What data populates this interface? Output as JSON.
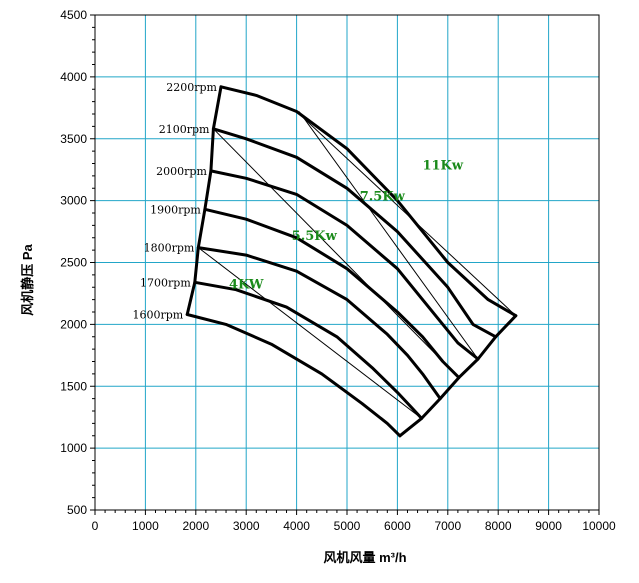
{
  "chart_data": {
    "type": "line",
    "title": "",
    "xlabel": "风机风量   m³/h",
    "ylabel": "风机静压   Pa",
    "xlim": [
      0,
      10000
    ],
    "ylim": [
      500,
      4500
    ],
    "x_ticks": [
      0,
      1000,
      2000,
      3000,
      4000,
      5000,
      6000,
      7000,
      8000,
      9000,
      10000
    ],
    "y_ticks": [
      500,
      1000,
      1500,
      2000,
      2500,
      3000,
      3500,
      4000,
      4500
    ],
    "grid": true,
    "colors": {
      "grid": "#22a6c8",
      "curve": "#000000",
      "kw_label": "#1a8a1a"
    },
    "speed_curves": [
      {
        "label": "2200rpm",
        "x": [
          2500,
          3200,
          4000,
          5000,
          6000,
          7000,
          7800,
          8350
        ],
        "y": [
          3920,
          3850,
          3720,
          3420,
          3000,
          2500,
          2200,
          2070
        ]
      },
      {
        "label": "2100rpm",
        "x": [
          2350,
          3000,
          4000,
          5000,
          6000,
          7000,
          7500,
          7950
        ],
        "y": [
          3580,
          3500,
          3350,
          3100,
          2750,
          2300,
          2000,
          1900
        ]
      },
      {
        "label": "2000rpm",
        "x": [
          2300,
          3000,
          4000,
          5000,
          6000,
          6800,
          7200,
          7600
        ],
        "y": [
          3240,
          3180,
          3050,
          2800,
          2450,
          2050,
          1850,
          1720
        ]
      },
      {
        "label": "1900rpm",
        "x": [
          2180,
          3000,
          4000,
          5000,
          6000,
          6500,
          6900,
          7220
        ],
        "y": [
          2930,
          2850,
          2700,
          2450,
          2100,
          1900,
          1700,
          1570
        ]
      },
      {
        "label": "1800rpm",
        "x": [
          2050,
          3000,
          4000,
          5000,
          5800,
          6200,
          6500,
          6850
        ],
        "y": [
          2620,
          2560,
          2430,
          2200,
          1920,
          1750,
          1600,
          1400
        ]
      },
      {
        "label": "1700rpm",
        "x": [
          1980,
          2800,
          3800,
          4800,
          5500,
          6000,
          6300,
          6480
        ],
        "y": [
          2340,
          2280,
          2140,
          1900,
          1650,
          1450,
          1320,
          1240
        ]
      },
      {
        "label": "1600rpm",
        "x": [
          1830,
          2600,
          3500,
          4500,
          5300,
          5800,
          6050
        ],
        "y": [
          2080,
          2000,
          1840,
          1600,
          1360,
          1200,
          1100
        ]
      }
    ],
    "min_flow_boundary": {
      "x": [
        1830,
        1980,
        2050,
        2180,
        2300,
        2350,
        2500
      ],
      "y": [
        2080,
        2340,
        2620,
        2930,
        3240,
        3580,
        3920
      ]
    },
    "max_flow_boundary": {
      "x": [
        6050,
        6480,
        6850,
        7220,
        7600,
        7950,
        8350
      ],
      "y": [
        1100,
        1240,
        1400,
        1570,
        1720,
        1900,
        2070
      ]
    },
    "power_lines": [
      {
        "label": "4KW",
        "label_at": [
          3000,
          2290
        ],
        "x": [
          2050,
          6480
        ],
        "y": [
          2620,
          1240
        ]
      },
      {
        "label": "5.5Kw",
        "label_at": [
          4350,
          2680
        ],
        "x": [
          2350,
          7220
        ],
        "y": [
          3580,
          1570
        ]
      },
      {
        "label": "7.5Kw",
        "label_at": [
          5700,
          3000
        ],
        "x": [
          4050,
          7600
        ],
        "y": [
          3720,
          1720
        ]
      },
      {
        "label": "11Kw",
        "label_at": [
          6900,
          3250
        ],
        "x": [
          4000,
          8350
        ],
        "y": [
          3720,
          2070
        ]
      }
    ]
  }
}
